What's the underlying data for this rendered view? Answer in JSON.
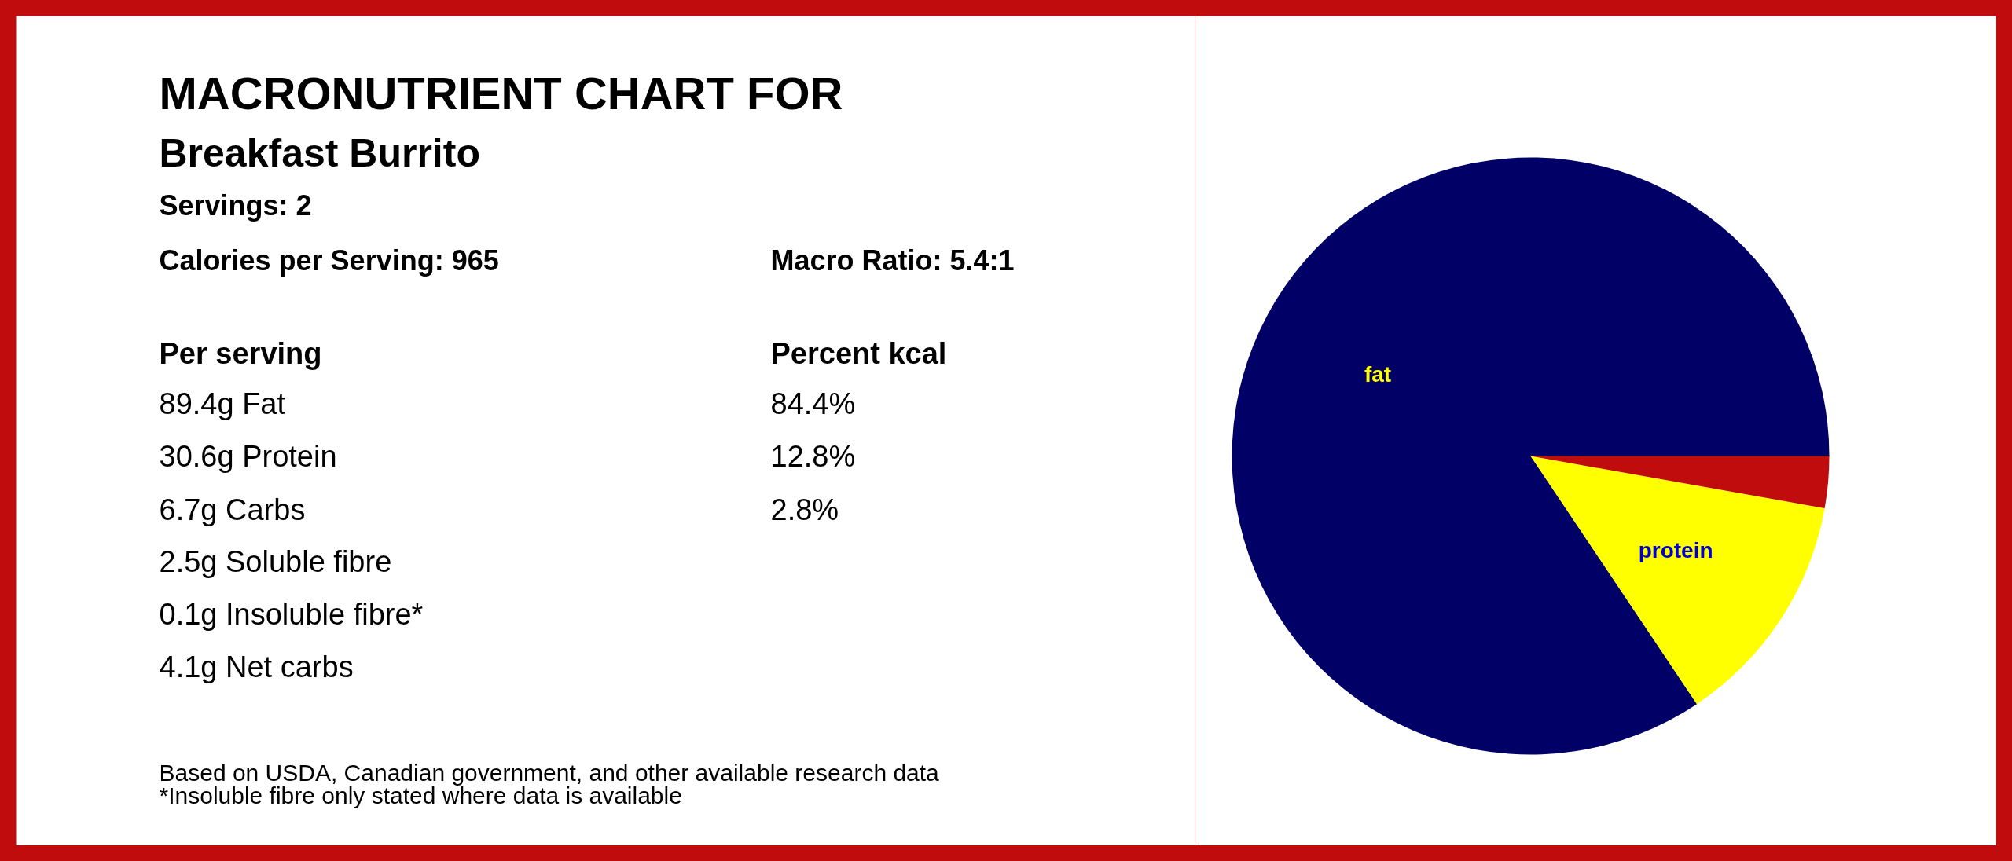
{
  "chart_data": [
    {
      "type": "other",
      "title": "MACRONUTRIENT CHART FOR",
      "subtitle": "Breakfast Burrito",
      "annotations": [
        "Servings: 2",
        "Calories per Serving: 965",
        "Macro Ratio: 5.4:1",
        "Per serving",
        "89.4g Fat",
        "30.6g Protein",
        "6.7g Carbs",
        "2.5g Soluble fibre",
        "0.1g Insoluble fibre*",
        "4.1g Net carbs",
        "Percent kcal",
        "84.4%",
        "12.8%",
        "2.8%",
        "Based on USDA, Canadian government, and other available research data",
        "*Insoluble fibre only stated where data is available"
      ]
    },
    {
      "type": "pie",
      "categories": [
        "fat",
        "protein",
        null
      ],
      "values": [
        84.4,
        12.8,
        2.8
      ],
      "colors": [
        "#000066",
        "#ffff00",
        "#c00c0c"
      ]
    }
  ]
}
